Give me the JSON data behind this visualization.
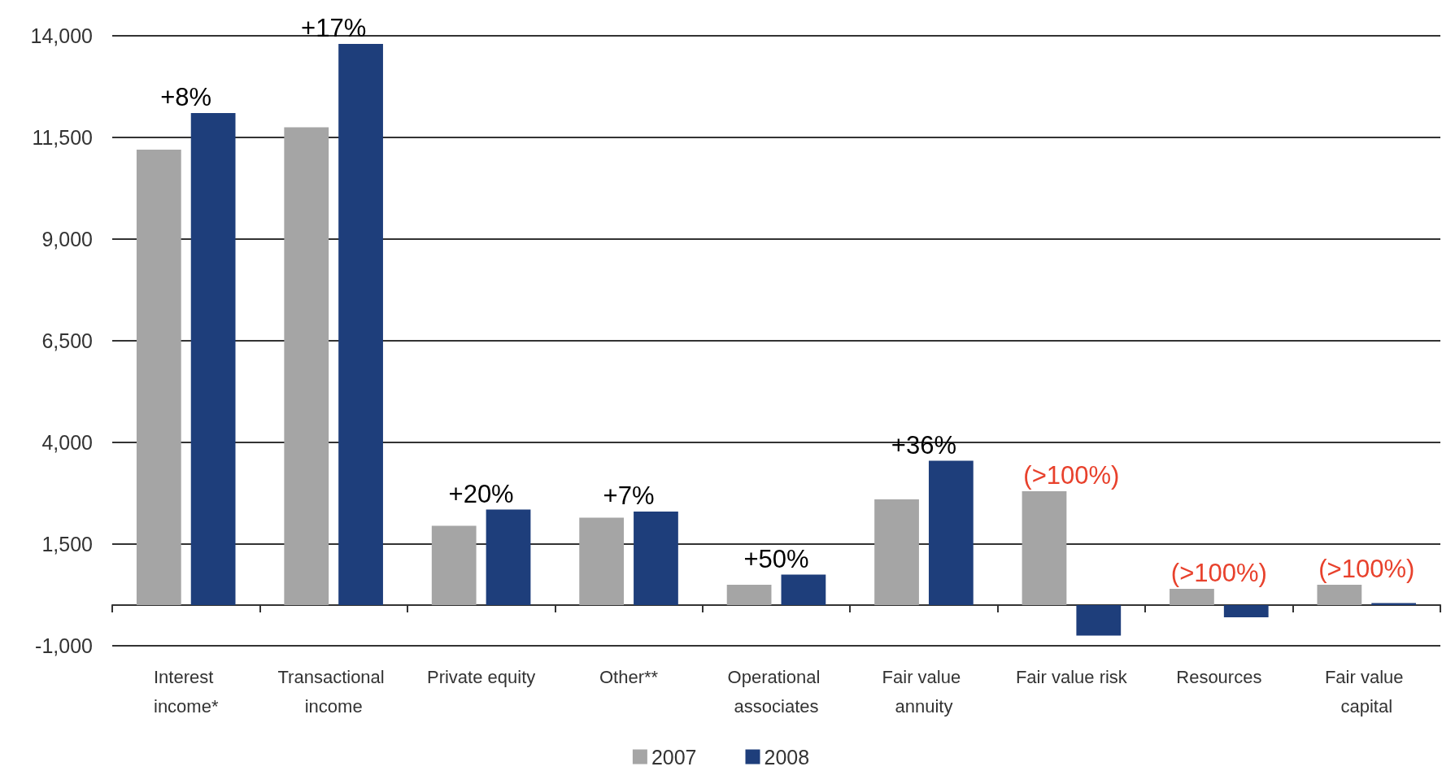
{
  "chart_data": {
    "type": "bar",
    "categories": [
      "Interest income*",
      "Transactional income",
      "Private equity",
      "Other**",
      "Operational associates",
      "Fair value annuity",
      "Fair value risk",
      "Resources",
      "Fair value capital"
    ],
    "series": [
      {
        "name": "2007",
        "color": "#a5a5a5",
        "values": [
          11200,
          11750,
          1950,
          2150,
          500,
          2600,
          2800,
          400,
          500
        ]
      },
      {
        "name": "2008",
        "color": "#1e3e7b",
        "values": [
          12100,
          13800,
          2350,
          2300,
          750,
          3550,
          -750,
          -300,
          50
        ]
      }
    ],
    "ylim": [
      -1000,
      14000
    ],
    "yticks": [
      {
        "value": -1000,
        "label": "-1,000"
      },
      {
        "value": 1500,
        "label": "1,500"
      },
      {
        "value": 4000,
        "label": "4,000"
      },
      {
        "value": 6500,
        "label": "6,500"
      },
      {
        "value": 9000,
        "label": "9,000"
      },
      {
        "value": 11500,
        "label": "11,500"
      },
      {
        "value": 14000,
        "label": "14,000"
      }
    ],
    "grid": "y",
    "legend": "bottom",
    "annotations": [
      "+8%",
      "+17%",
      "+20%",
      "+7%",
      "+50%",
      "+36%",
      "(>100%)",
      "(>100%)",
      "(>100%)"
    ]
  }
}
